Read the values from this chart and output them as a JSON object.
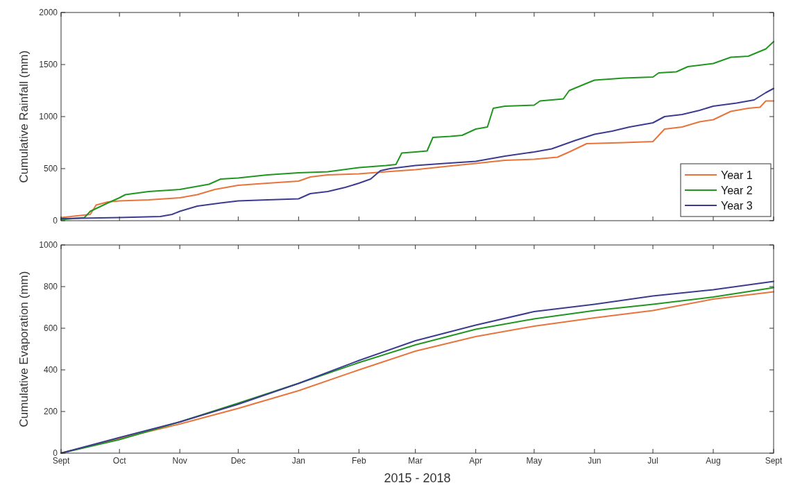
{
  "chart_data": [
    {
      "type": "line",
      "ylabel": "Cumulative Rainfall (mm)",
      "xlim": [
        "2015-09-01",
        "2016-09-01"
      ],
      "xticks": [
        {
          "value": "2015-09-01",
          "label": null
        },
        {
          "value": "2015-10-01",
          "label": null
        },
        {
          "value": "2015-11-01",
          "label": null
        },
        {
          "value": "2015-12-01",
          "label": null
        },
        {
          "value": "2016-01-01",
          "label": null
        },
        {
          "value": "2016-02-01",
          "label": null
        },
        {
          "value": "2016-03-01",
          "label": null
        },
        {
          "value": "2016-04-01",
          "label": null
        },
        {
          "value": "2016-05-01",
          "label": null
        },
        {
          "value": "2016-06-01",
          "label": null
        },
        {
          "value": "2016-07-01",
          "label": null
        },
        {
          "value": "2016-08-01",
          "label": null
        },
        {
          "value": "2016-09-01",
          "label": null
        }
      ],
      "ylim": [
        0,
        2000
      ],
      "yticks": [
        0,
        500,
        1000,
        1500,
        2000
      ],
      "tick_labels": "y",
      "legend": "bottom right",
      "marker": "none",
      "line_style": "solid",
      "series": [
        {
          "name": "Year 1",
          "color": "#e8743b",
          "x": [
            "2015-09-01",
            "2015-09-16",
            "2015-09-19",
            "2015-09-25",
            "2015-10-01",
            "2015-10-16",
            "2015-11-01",
            "2015-11-10",
            "2015-11-19",
            "2015-12-01",
            "2015-12-16",
            "2016-01-01",
            "2016-01-07",
            "2016-01-16",
            "2016-02-01",
            "2016-02-15",
            "2016-03-01",
            "2016-03-16",
            "2016-04-01",
            "2016-04-16",
            "2016-05-01",
            "2016-05-13",
            "2016-05-19",
            "2016-05-28",
            "2016-06-16",
            "2016-07-01",
            "2016-07-07",
            "2016-07-16",
            "2016-07-25",
            "2016-08-01",
            "2016-08-10",
            "2016-08-19",
            "2016-08-25",
            "2016-08-28",
            "2016-09-01"
          ],
          "values": [
            30,
            60,
            150,
            180,
            190,
            200,
            220,
            250,
            300,
            340,
            360,
            380,
            420,
            440,
            450,
            470,
            490,
            520,
            550,
            580,
            590,
            610,
            660,
            740,
            750,
            760,
            880,
            900,
            950,
            970,
            1050,
            1080,
            1090,
            1150,
            1150
          ]
        },
        {
          "name": "Year 2",
          "color": "#1f961f",
          "x": [
            "2015-09-01",
            "2015-09-13",
            "2015-09-16",
            "2015-09-25",
            "2015-10-01",
            "2015-10-04",
            "2015-10-16",
            "2015-11-01",
            "2015-11-10",
            "2015-11-16",
            "2015-11-22",
            "2015-12-01",
            "2015-12-16",
            "2016-01-01",
            "2016-01-16",
            "2016-02-01",
            "2016-02-15",
            "2016-02-20",
            "2016-02-23",
            "2016-03-01",
            "2016-03-07",
            "2016-03-10",
            "2016-03-19",
            "2016-03-25",
            "2016-04-01",
            "2016-04-07",
            "2016-04-10",
            "2016-04-16",
            "2016-05-01",
            "2016-05-04",
            "2016-05-16",
            "2016-05-19",
            "2016-05-28",
            "2016-06-01",
            "2016-06-16",
            "2016-07-01",
            "2016-07-04",
            "2016-07-13",
            "2016-07-19",
            "2016-08-01",
            "2016-08-10",
            "2016-08-19",
            "2016-08-28",
            "2016-09-01"
          ],
          "values": [
            10,
            30,
            90,
            170,
            220,
            250,
            280,
            300,
            330,
            350,
            400,
            410,
            440,
            460,
            470,
            510,
            530,
            540,
            650,
            660,
            670,
            800,
            810,
            820,
            880,
            900,
            1080,
            1100,
            1110,
            1150,
            1170,
            1250,
            1320,
            1350,
            1370,
            1380,
            1420,
            1430,
            1480,
            1510,
            1570,
            1580,
            1650,
            1720
          ]
        },
        {
          "name": "Year 3",
          "color": "#3b3b8f",
          "x": [
            "2015-09-01",
            "2015-10-01",
            "2015-10-22",
            "2015-10-28",
            "2015-11-01",
            "2015-11-10",
            "2015-11-22",
            "2015-12-01",
            "2015-12-16",
            "2016-01-01",
            "2016-01-07",
            "2016-01-16",
            "2016-01-25",
            "2016-02-01",
            "2016-02-07",
            "2016-02-12",
            "2016-02-17",
            "2016-03-01",
            "2016-03-16",
            "2016-04-01",
            "2016-04-07",
            "2016-04-16",
            "2016-05-01",
            "2016-05-10",
            "2016-05-22",
            "2016-06-01",
            "2016-06-10",
            "2016-06-19",
            "2016-07-01",
            "2016-07-07",
            "2016-07-16",
            "2016-07-25",
            "2016-08-01",
            "2016-08-13",
            "2016-08-22",
            "2016-08-28",
            "2016-09-01"
          ],
          "values": [
            20,
            30,
            40,
            60,
            90,
            140,
            170,
            190,
            200,
            210,
            260,
            280,
            320,
            360,
            400,
            480,
            500,
            530,
            550,
            570,
            590,
            620,
            660,
            690,
            770,
            830,
            860,
            900,
            940,
            1000,
            1020,
            1060,
            1100,
            1130,
            1160,
            1230,
            1270
          ]
        }
      ]
    },
    {
      "type": "line",
      "ylabel": "Cumulative Evaporation (mm)",
      "xlabel": "2015 - 2018",
      "xlim": [
        "2015-09-01",
        "2016-09-01"
      ],
      "xticks": [
        {
          "value": "2015-09-01",
          "label": "Sept"
        },
        {
          "value": "2015-10-01",
          "label": "Oct"
        },
        {
          "value": "2015-11-01",
          "label": "Nov"
        },
        {
          "value": "2015-12-01",
          "label": "Dec"
        },
        {
          "value": "2016-01-01",
          "label": "Jan"
        },
        {
          "value": "2016-02-01",
          "label": "Feb"
        },
        {
          "value": "2016-03-01",
          "label": "Mar"
        },
        {
          "value": "2016-04-01",
          "label": "Apr"
        },
        {
          "value": "2016-05-01",
          "label": "May"
        },
        {
          "value": "2016-06-01",
          "label": "Jun"
        },
        {
          "value": "2016-07-01",
          "label": "Jul"
        },
        {
          "value": "2016-08-01",
          "label": "Aug"
        },
        {
          "value": "2016-09-01",
          "label": "Sept"
        }
      ],
      "ylim": [
        0,
        1000
      ],
      "yticks": [
        0,
        200,
        400,
        600,
        800,
        1000
      ],
      "marker": "none",
      "line_style": "solid",
      "series": [
        {
          "color": "#e8743b",
          "x": [
            "2015-09-01",
            "2015-10-01",
            "2015-11-01",
            "2015-12-01",
            "2016-01-01",
            "2016-02-01",
            "2016-03-01",
            "2016-04-01",
            "2016-05-01",
            "2016-06-01",
            "2016-07-01",
            "2016-08-01",
            "2016-09-01"
          ],
          "values": [
            0,
            70,
            140,
            215,
            300,
            400,
            490,
            560,
            610,
            650,
            685,
            740,
            775
          ]
        },
        {
          "color": "#1f961f",
          "x": [
            "2015-09-01",
            "2015-10-01",
            "2015-11-01",
            "2015-12-01",
            "2016-01-01",
            "2016-02-01",
            "2016-03-01",
            "2016-04-01",
            "2016-05-01",
            "2016-06-01",
            "2016-07-01",
            "2016-08-01",
            "2016-09-01"
          ],
          "values": [
            0,
            65,
            150,
            240,
            335,
            435,
            520,
            595,
            645,
            685,
            715,
            750,
            795
          ]
        },
        {
          "color": "#3b3b8f",
          "x": [
            "2015-09-01",
            "2015-10-01",
            "2015-11-01",
            "2015-12-01",
            "2016-01-01",
            "2016-02-01",
            "2016-03-01",
            "2016-04-01",
            "2016-05-01",
            "2016-06-01",
            "2016-07-01",
            "2016-08-01",
            "2016-09-01"
          ],
          "values": [
            0,
            75,
            150,
            235,
            335,
            445,
            540,
            615,
            680,
            715,
            755,
            785,
            825
          ]
        }
      ]
    }
  ]
}
